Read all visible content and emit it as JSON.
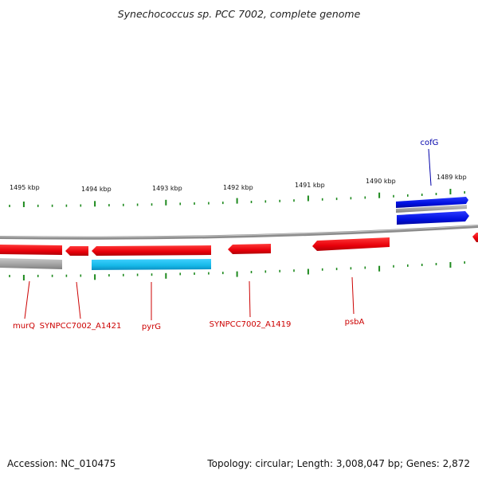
{
  "title": "Synechococcus sp. PCC 7002, complete genome",
  "footer": {
    "accession": "Accession: NC_010475",
    "summary": "Topology: circular; Length: 3,008,047 bp; Genes: 2,872"
  },
  "colors": {
    "forward_gene": "#e8000a",
    "reverse_gene_blue": "#0010e0",
    "pseudogene": "#9a9a9a",
    "rna_gene": "#16b8e8",
    "tick": "#1e8a1e",
    "label_red": "#cc0000",
    "label_blue": "#0000aa",
    "backbone": "#8c8c8c"
  },
  "scale": {
    "ticks": [
      {
        "label": "1495 kbp"
      },
      {
        "label": "1494 kbp"
      },
      {
        "label": "1493 kbp"
      },
      {
        "label": "1492 kbp"
      },
      {
        "label": "1491 kbp"
      },
      {
        "label": "1490 kbp"
      },
      {
        "label": "1489 kbp"
      }
    ]
  },
  "gene_labels": [
    {
      "name": "murQ"
    },
    {
      "name": "SYNPCC7002_A1421"
    },
    {
      "name": "pyrG"
    },
    {
      "name": "SYNPCC7002_A1419"
    },
    {
      "name": "psbA"
    },
    {
      "name": "cofG"
    }
  ]
}
